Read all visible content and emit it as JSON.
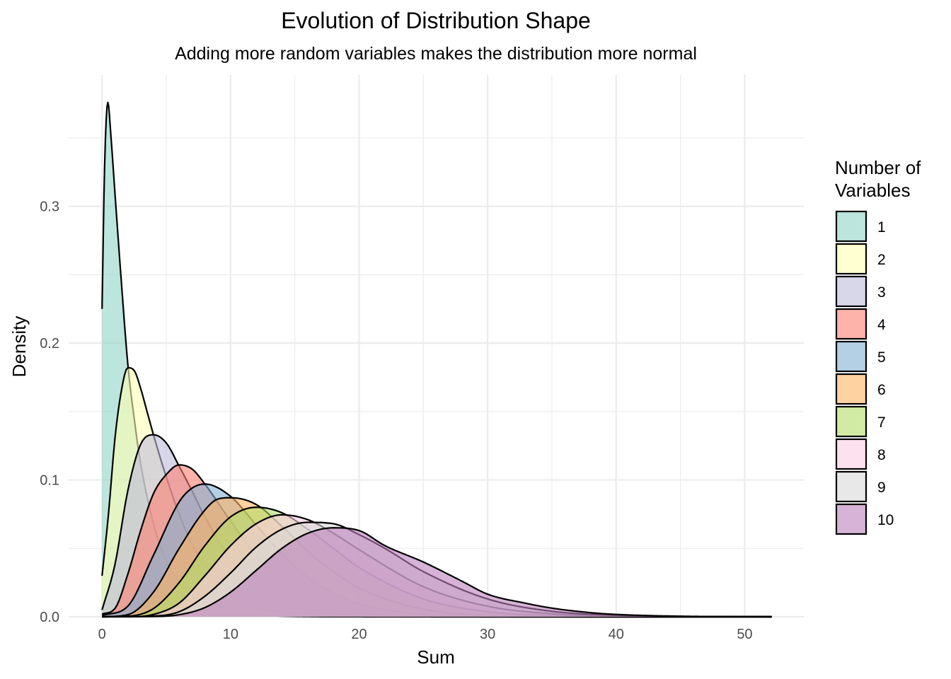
{
  "chart_data": {
    "type": "area",
    "subtype": "density",
    "title": "Evolution of Distribution Shape",
    "subtitle": "Adding more random variables makes the distribution more normal",
    "xlabel": "Sum",
    "ylabel": "Density",
    "xlim": [
      -2.6,
      54.6
    ],
    "ylim": [
      0,
      0.396
    ],
    "x_ticks": [
      0,
      10,
      20,
      30,
      40,
      50
    ],
    "x_tick_labels": [
      "0",
      "10",
      "20",
      "30",
      "40",
      "50"
    ],
    "x_minor_ticks": [
      5,
      15,
      25,
      35,
      45
    ],
    "y_ticks": [
      0.0,
      0.1,
      0.2,
      0.3
    ],
    "y_tick_labels": [
      "0.0",
      "0.1",
      "0.2",
      "0.3"
    ],
    "y_minor_ticks": [
      0.05,
      0.15,
      0.25,
      0.35
    ],
    "grid": true,
    "fill_opacity": 0.6,
    "outline_color": "#000000",
    "legend": {
      "title": "Number of\nVariables",
      "placement": "right"
    },
    "series": [
      {
        "name": "1",
        "color": "#8DD3C7",
        "x": [
          0,
          0.2,
          0.45,
          0.7,
          1,
          1.5,
          2,
          2.5,
          3,
          4,
          5,
          6,
          7,
          8,
          10,
          12,
          15,
          20,
          30,
          52.1
        ],
        "y": [
          0.225,
          0.33,
          0.376,
          0.35,
          0.31,
          0.245,
          0.185,
          0.145,
          0.112,
          0.068,
          0.041,
          0.025,
          0.015,
          0.009,
          0.0034,
          0.0012,
          0.0003,
          2e-05,
          0,
          0
        ]
      },
      {
        "name": "2",
        "color": "#FFFFB3",
        "x": [
          0,
          0.5,
          1,
          1.5,
          2,
          2.5,
          3,
          3.5,
          4,
          5,
          6,
          7,
          8,
          10,
          12,
          14,
          16,
          20,
          30,
          52.1
        ],
        "y": [
          0.03,
          0.075,
          0.13,
          0.165,
          0.182,
          0.18,
          0.167,
          0.15,
          0.133,
          0.102,
          0.075,
          0.053,
          0.037,
          0.017,
          0.0075,
          0.0032,
          0.0013,
          0.0002,
          0,
          0
        ]
      },
      {
        "name": "3",
        "color": "#BEBADA",
        "x": [
          0,
          1,
          2,
          3,
          4,
          5,
          6,
          7,
          8,
          10,
          12,
          14,
          16,
          20,
          25,
          35,
          52.1
        ],
        "y": [
          0.005,
          0.038,
          0.092,
          0.126,
          0.133,
          0.127,
          0.11,
          0.092,
          0.073,
          0.042,
          0.022,
          0.011,
          0.0054,
          0.0011,
          0.0001,
          0,
          0
        ]
      },
      {
        "name": "4",
        "color": "#FB8072",
        "x": [
          0,
          1,
          2,
          3,
          4,
          5,
          6,
          7,
          8,
          10,
          12,
          14,
          16,
          20,
          25,
          35,
          52.1
        ],
        "y": [
          0.002,
          0.006,
          0.031,
          0.063,
          0.09,
          0.104,
          0.111,
          0.108,
          0.097,
          0.07,
          0.045,
          0.026,
          0.014,
          0.0035,
          0.0005,
          0,
          0
        ]
      },
      {
        "name": "5",
        "color": "#80B1D3",
        "x": [
          0,
          2,
          4,
          6,
          7,
          8,
          10,
          12,
          14,
          16,
          18,
          20,
          25,
          30,
          40,
          52.1
        ],
        "y": [
          0.001,
          0.0077,
          0.045,
          0.084,
          0.094,
          0.097,
          0.088,
          0.067,
          0.046,
          0.029,
          0.017,
          0.0095,
          0.0019,
          0.0003,
          0,
          0
        ]
      },
      {
        "name": "6",
        "color": "#FDB462",
        "x": [
          0,
          2,
          4,
          6,
          8,
          9,
          10,
          12,
          14,
          16,
          18,
          20,
          25,
          30,
          40,
          52.1
        ],
        "y": [
          0,
          0.0015,
          0.018,
          0.05,
          0.078,
          0.086,
          0.087,
          0.082,
          0.066,
          0.048,
          0.033,
          0.021,
          0.0055,
          0.0012,
          0,
          0
        ]
      },
      {
        "name": "7",
        "color": "#B3DE69",
        "x": [
          0,
          2,
          4,
          6,
          8,
          10,
          12,
          14,
          16,
          18,
          20,
          25,
          30,
          35,
          45,
          52.1
        ],
        "y": [
          0,
          0.0004,
          0.006,
          0.025,
          0.052,
          0.073,
          0.08,
          0.076,
          0.064,
          0.05,
          0.036,
          0.013,
          0.0037,
          0.0009,
          0,
          0
        ]
      },
      {
        "name": "8",
        "color": "#FCCDE5",
        "x": [
          0,
          2,
          4,
          6,
          8,
          10,
          12,
          14,
          16,
          18,
          20,
          25,
          30,
          35,
          40,
          52.1
        ],
        "y": [
          0,
          0,
          0.0017,
          0.01,
          0.03,
          0.052,
          0.068,
          0.0745,
          0.071,
          0.061,
          0.049,
          0.022,
          0.0077,
          0.0022,
          0.0005,
          0
        ]
      },
      {
        "name": "9",
        "color": "#D9D9D9",
        "x": [
          0,
          4,
          6,
          8,
          10,
          12,
          14,
          16,
          18,
          20,
          22,
          25,
          30,
          35,
          40,
          45,
          52.1
        ],
        "y": [
          0,
          0.0005,
          0.0037,
          0.015,
          0.032,
          0.051,
          0.064,
          0.069,
          0.068,
          0.06,
          0.05,
          0.033,
          0.013,
          0.004,
          0.0011,
          0.0002,
          0
        ]
      },
      {
        "name": "10",
        "color": "#BC80BD",
        "x": [
          0,
          4,
          6,
          8,
          10,
          12,
          14,
          16,
          18,
          20,
          22,
          25,
          28,
          30,
          33,
          35,
          38,
          40,
          45,
          50,
          52.1
        ],
        "y": [
          0,
          0.0002,
          0.0015,
          0.0067,
          0.018,
          0.034,
          0.05,
          0.061,
          0.065,
          0.063,
          0.052,
          0.04,
          0.026,
          0.0165,
          0.0098,
          0.0063,
          0.003,
          0.0017,
          0.0004,
          0.0001,
          0
        ]
      }
    ]
  }
}
